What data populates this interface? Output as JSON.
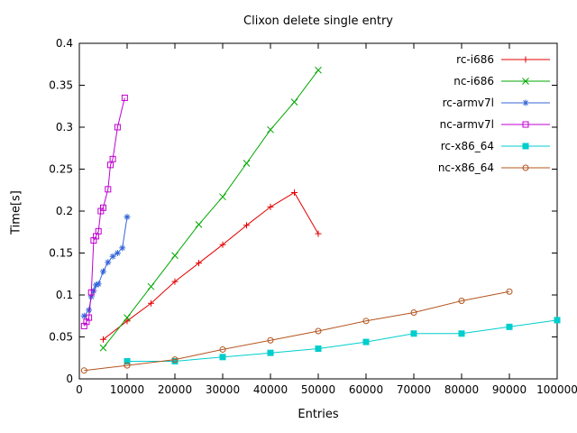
{
  "chart_data": {
    "type": "line",
    "title": "Clixon delete single entry",
    "xlabel": "Entries",
    "ylabel": "Time[s]",
    "xlim": [
      0,
      100000
    ],
    "ylim": [
      0,
      0.4
    ],
    "grid": false,
    "legend_position": "top-right-inside",
    "x_ticks": [
      0,
      10000,
      20000,
      30000,
      40000,
      50000,
      60000,
      70000,
      80000,
      90000,
      100000
    ],
    "x_tick_labels": [
      "0",
      "10000",
      "20000",
      "30000",
      "40000",
      "50000",
      "60000",
      "70000",
      "80000",
      "90000",
      "100000"
    ],
    "y_ticks": [
      0,
      0.05,
      0.1,
      0.15,
      0.2,
      0.25,
      0.3,
      0.35,
      0.4
    ],
    "y_tick_labels": [
      "0",
      "0.05",
      "0.1",
      "0.15",
      "0.2",
      "0.25",
      "0.3",
      "0.35",
      "0.4"
    ],
    "series": [
      {
        "name": "rc-i686",
        "color": "#e60000",
        "marker": "plus",
        "points": [
          [
            5000,
            0.047
          ],
          [
            10000,
            0.069
          ],
          [
            15000,
            0.09
          ],
          [
            20000,
            0.116
          ],
          [
            25000,
            0.138
          ],
          [
            30000,
            0.16
          ],
          [
            35000,
            0.183
          ],
          [
            40000,
            0.205
          ],
          [
            45000,
            0.222
          ],
          [
            50000,
            0.173
          ]
        ]
      },
      {
        "name": "nc-i686",
        "color": "#00a800",
        "marker": "x",
        "points": [
          [
            5000,
            0.037
          ],
          [
            10000,
            0.073
          ],
          [
            15000,
            0.11
          ],
          [
            20000,
            0.147
          ],
          [
            25000,
            0.184
          ],
          [
            30000,
            0.217
          ],
          [
            35000,
            0.257
          ],
          [
            40000,
            0.297
          ],
          [
            45000,
            0.33
          ],
          [
            50000,
            0.368
          ]
        ]
      },
      {
        "name": "rc-armv7l",
        "color": "#3465d8",
        "marker": "asterisk",
        "points": [
          [
            1000,
            0.075
          ],
          [
            2000,
            0.082
          ],
          [
            2500,
            0.098
          ],
          [
            3000,
            0.105
          ],
          [
            3500,
            0.112
          ],
          [
            4000,
            0.113
          ],
          [
            5000,
            0.128
          ],
          [
            6000,
            0.139
          ],
          [
            7000,
            0.146
          ],
          [
            8000,
            0.15
          ],
          [
            9000,
            0.156
          ],
          [
            10000,
            0.193
          ]
        ]
      },
      {
        "name": "nc-armv7l",
        "color": "#bf00d0",
        "marker": "square-open",
        "points": [
          [
            1000,
            0.063
          ],
          [
            1500,
            0.068
          ],
          [
            2000,
            0.073
          ],
          [
            2500,
            0.103
          ],
          [
            3000,
            0.165
          ],
          [
            3500,
            0.17
          ],
          [
            4000,
            0.176
          ],
          [
            4500,
            0.2
          ],
          [
            5000,
            0.204
          ],
          [
            6000,
            0.226
          ],
          [
            6500,
            0.255
          ],
          [
            7000,
            0.262
          ],
          [
            8000,
            0.3
          ],
          [
            9500,
            0.335
          ]
        ]
      },
      {
        "name": "rc-x86_64",
        "color": "#00cdcd",
        "marker": "square-filled",
        "points": [
          [
            10000,
            0.021
          ],
          [
            20000,
            0.021
          ],
          [
            30000,
            0.026
          ],
          [
            40000,
            0.031
          ],
          [
            50000,
            0.036
          ],
          [
            60000,
            0.044
          ],
          [
            70000,
            0.054
          ],
          [
            80000,
            0.054
          ],
          [
            90000,
            0.062
          ],
          [
            100000,
            0.07
          ]
        ]
      },
      {
        "name": "nc-x86_64",
        "color": "#b3541e",
        "marker": "circle-open",
        "points": [
          [
            1000,
            0.01
          ],
          [
            10000,
            0.016
          ],
          [
            20000,
            0.023
          ],
          [
            30000,
            0.035
          ],
          [
            40000,
            0.046
          ],
          [
            50000,
            0.057
          ],
          [
            60000,
            0.069
          ],
          [
            70000,
            0.079
          ],
          [
            80000,
            0.093
          ],
          [
            90000,
            0.104
          ]
        ]
      }
    ]
  }
}
